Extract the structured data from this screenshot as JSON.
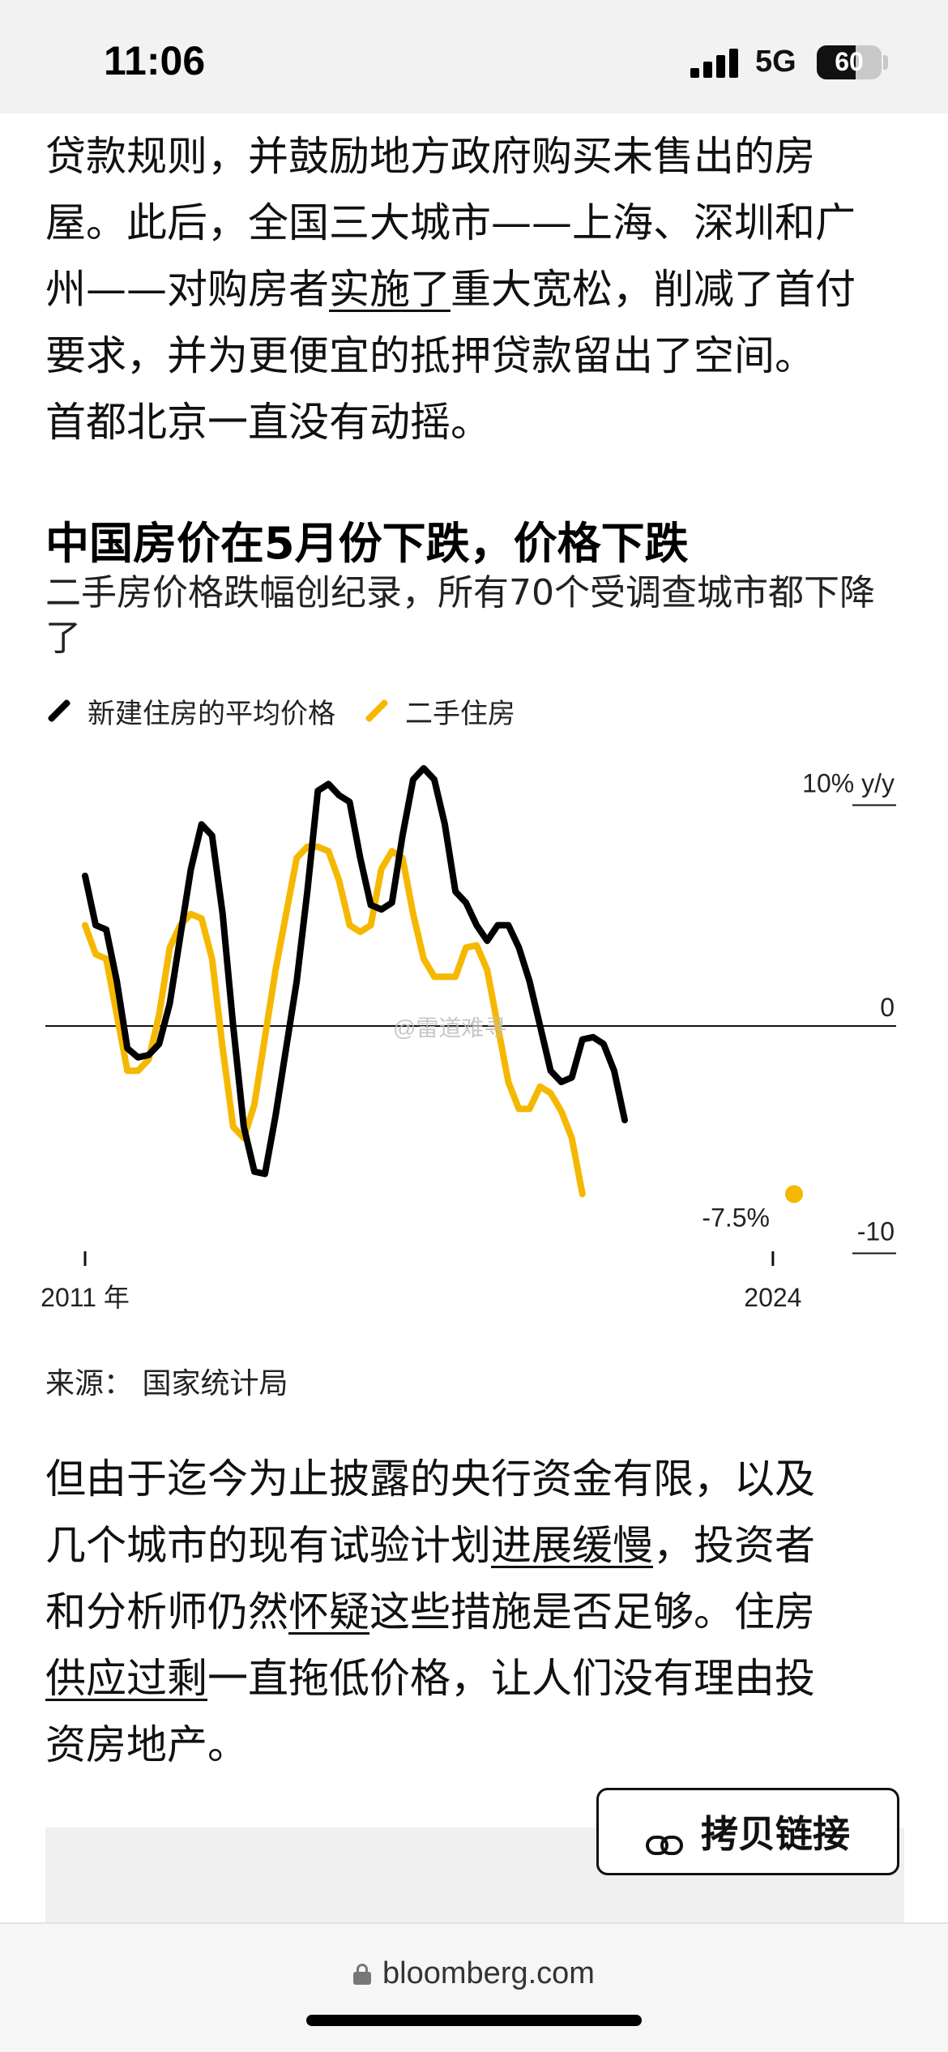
{
  "status_bar": {
    "time": "11:06",
    "network": "5G",
    "battery": "60",
    "battery_level_percent": 60
  },
  "article": {
    "para_top_lines": [
      "贷款规则，并鼓励地方政府购买未售出的房",
      "屋。此后，全国三大城市——上海、深圳和广",
      [
        "州——对购房者",
        "实施了",
        "重大宽松，削减了首付"
      ],
      "要求，并为更便宜的抵押贷款留出了空间。",
      "首都北京一直没有动摇。"
    ],
    "para_bottom_lines": [
      "但由于迄今为止披露的央行资金有限，以及",
      [
        "几个城市的现有试验计划",
        "进展缓慢",
        "，投资者"
      ],
      [
        "和分析师仍然",
        "怀疑",
        "这些措施是否足够。住房"
      ],
      [
        "",
        "供应过剩",
        "一直拖低价格，让人们没有理由投"
      ],
      "资房地产。"
    ]
  },
  "chart_data": {
    "type": "line",
    "title": "中国房价在5月份下跌，价格下跌",
    "subtitle": "二手房价格跌幅创纪录，所有70个受调查城市都下降了",
    "x_range": [
      2011.0,
      2024.4
    ],
    "y_range": [
      -10,
      10
    ],
    "y_unit_label": "10% y/y",
    "y_ticks": [
      {
        "value": 10,
        "label": "10% y/y"
      },
      {
        "value": 0,
        "label": "0"
      },
      {
        "value": -10,
        "label": "-10"
      }
    ],
    "x_ticks": [
      {
        "value": 2011.0,
        "label": "2011 年"
      },
      {
        "value": 2024.0,
        "label": "2024"
      }
    ],
    "annotation": {
      "label": "-7.5%",
      "series": "二手住房",
      "x": 2024.4,
      "y": -7.5
    },
    "grid": false,
    "legend_position": "top-left",
    "series": [
      {
        "name": "新建住房的平均价格",
        "color": "#000000",
        "points": [
          [
            2011.0,
            6.7
          ],
          [
            2011.2,
            4.5
          ],
          [
            2011.4,
            4.3
          ],
          [
            2011.6,
            2.0
          ],
          [
            2011.8,
            -1.0
          ],
          [
            2012.0,
            -1.4
          ],
          [
            2012.2,
            -1.3
          ],
          [
            2012.4,
            -0.8
          ],
          [
            2012.6,
            1.0
          ],
          [
            2012.8,
            4.0
          ],
          [
            2013.0,
            7.0
          ],
          [
            2013.2,
            9.0
          ],
          [
            2013.4,
            8.5
          ],
          [
            2013.6,
            5.0
          ],
          [
            2013.8,
            0.0
          ],
          [
            2014.0,
            -4.5
          ],
          [
            2014.2,
            -6.5
          ],
          [
            2014.4,
            -6.6
          ],
          [
            2014.6,
            -4.0
          ],
          [
            2014.8,
            -1.0
          ],
          [
            2015.0,
            2.0
          ],
          [
            2015.2,
            6.0
          ],
          [
            2015.4,
            10.5
          ],
          [
            2015.6,
            10.8
          ],
          [
            2015.8,
            10.3
          ],
          [
            2016.0,
            10.0
          ],
          [
            2016.2,
            7.5
          ],
          [
            2016.4,
            5.4
          ],
          [
            2016.6,
            5.2
          ],
          [
            2016.8,
            5.5
          ],
          [
            2017.0,
            8.5
          ],
          [
            2017.2,
            11.0
          ],
          [
            2017.4,
            11.5
          ],
          [
            2017.6,
            11.0
          ],
          [
            2017.8,
            9.0
          ],
          [
            2018.0,
            6.0
          ],
          [
            2018.2,
            5.5
          ],
          [
            2018.4,
            4.5
          ],
          [
            2018.6,
            3.8
          ],
          [
            2018.8,
            4.5
          ],
          [
            2019.0,
            4.5
          ],
          [
            2019.2,
            3.5
          ],
          [
            2019.4,
            2.0
          ],
          [
            2019.6,
            0.0
          ],
          [
            2019.8,
            -2.0
          ],
          [
            2020.0,
            -2.5
          ],
          [
            2020.2,
            -2.3
          ],
          [
            2020.4,
            -0.6
          ],
          [
            2020.6,
            -0.5
          ],
          [
            2020.8,
            -0.8
          ],
          [
            2021.0,
            -2.0
          ],
          [
            2021.2,
            -4.2
          ]
        ]
      },
      {
        "name": "二手住房",
        "color": "#f5b800",
        "points": [
          [
            2011.0,
            4.5
          ],
          [
            2011.2,
            3.2
          ],
          [
            2011.4,
            3.0
          ],
          [
            2011.6,
            0.5
          ],
          [
            2011.8,
            -2.0
          ],
          [
            2012.0,
            -2.0
          ],
          [
            2012.2,
            -1.5
          ],
          [
            2012.4,
            0.5
          ],
          [
            2012.6,
            3.5
          ],
          [
            2012.8,
            4.5
          ],
          [
            2013.0,
            5.0
          ],
          [
            2013.2,
            4.8
          ],
          [
            2013.4,
            3.0
          ],
          [
            2013.6,
            -1.0
          ],
          [
            2013.8,
            -4.5
          ],
          [
            2014.0,
            -5.0
          ],
          [
            2014.2,
            -3.5
          ],
          [
            2014.4,
            -0.5
          ],
          [
            2014.6,
            2.5
          ],
          [
            2014.8,
            5.0
          ],
          [
            2015.0,
            7.5
          ],
          [
            2015.2,
            8.0
          ],
          [
            2015.4,
            8.0
          ],
          [
            2015.6,
            7.8
          ],
          [
            2015.8,
            6.5
          ],
          [
            2016.0,
            4.5
          ],
          [
            2016.2,
            4.2
          ],
          [
            2016.4,
            4.5
          ],
          [
            2016.6,
            7.0
          ],
          [
            2016.8,
            7.8
          ],
          [
            2017.0,
            7.5
          ],
          [
            2017.2,
            5.0
          ],
          [
            2017.4,
            3.0
          ],
          [
            2017.6,
            2.2
          ],
          [
            2017.8,
            2.2
          ],
          [
            2018.0,
            2.2
          ],
          [
            2018.2,
            3.5
          ],
          [
            2018.4,
            3.6
          ],
          [
            2018.6,
            2.5
          ],
          [
            2018.8,
            0.0
          ],
          [
            2019.0,
            -2.5
          ],
          [
            2019.2,
            -3.7
          ],
          [
            2019.4,
            -3.7
          ],
          [
            2019.6,
            -2.7
          ],
          [
            2019.8,
            -3.0
          ],
          [
            2020.0,
            -3.8
          ],
          [
            2020.2,
            -5.0
          ],
          [
            2020.4,
            -7.5
          ]
        ]
      }
    ]
  },
  "source": "来源： 国家统计局",
  "watermark": "@雷道难寻",
  "copy_link": {
    "label": "拷贝链接"
  },
  "browser": {
    "url": "bloomberg.com"
  },
  "colors": {
    "yellow": "#f5b800",
    "black": "#000000"
  }
}
